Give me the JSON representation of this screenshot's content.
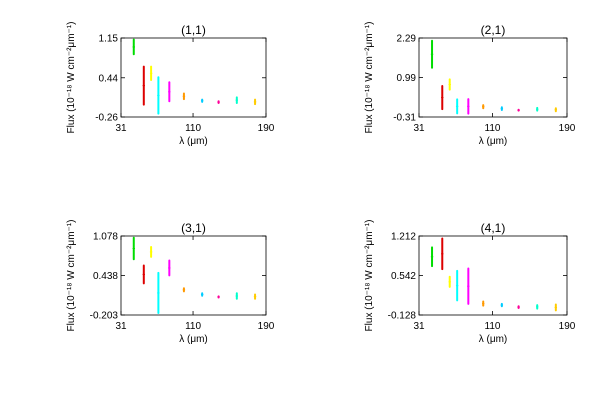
{
  "chart_data": [
    {
      "type": "scatter",
      "title": "(1,1)",
      "xlabel": "λ (μm)",
      "ylabel": "Flux (10⁻¹⁸ W cm⁻²μm⁻¹)",
      "xlim": [
        31,
        190
      ],
      "ylim": [
        -0.26,
        1.15
      ],
      "xticks": [
        "31",
        "110",
        "190"
      ],
      "yticks": [
        "-0.26",
        "0.44",
        "1.15"
      ],
      "series": [
        {
          "color": "#00dd00",
          "x": [
            45,
            45
          ],
          "y": [
            0.86,
            1.12
          ]
        },
        {
          "color": "#dd0000",
          "x": [
            56,
            56
          ],
          "y": [
            -0.04,
            0.64
          ]
        },
        {
          "color": "#ffff00",
          "x": [
            64,
            64
          ],
          "y": [
            0.4,
            0.64
          ]
        },
        {
          "color": "#00ffff",
          "x": [
            72,
            72
          ],
          "y": [
            -0.2,
            0.45
          ]
        },
        {
          "color": "#ff00ff",
          "x": [
            84,
            84
          ],
          "y": [
            0.02,
            0.36
          ]
        },
        {
          "color": "#ff9900",
          "x": [
            100,
            100
          ],
          "y": [
            0.06,
            0.16
          ]
        },
        {
          "color": "#00ccff",
          "x": [
            120,
            120
          ],
          "y": [
            0.01,
            0.05
          ]
        },
        {
          "color": "#ff0099",
          "x": [
            138,
            138
          ],
          "y": [
            -0.01,
            0.02
          ]
        },
        {
          "color": "#00ffcc",
          "x": [
            158,
            158
          ],
          "y": [
            -0.01,
            0.09
          ]
        },
        {
          "color": "#ffcc00",
          "x": [
            178,
            178
          ],
          "y": [
            -0.03,
            0.05
          ]
        }
      ]
    },
    {
      "type": "scatter",
      "title": "(2,1)",
      "xlabel": "λ (μm)",
      "ylabel": "Flux (10⁻¹⁸ W cm⁻²μm⁻¹)",
      "xlim": [
        31,
        190
      ],
      "ylim": [
        -0.31,
        2.29
      ],
      "xticks": [
        "31",
        "110",
        "190"
      ],
      "yticks": [
        "-0.31",
        "0.99",
        "2.29"
      ],
      "series": [
        {
          "color": "#00dd00",
          "x": [
            45,
            45
          ],
          "y": [
            1.31,
            2.2
          ]
        },
        {
          "color": "#dd0000",
          "x": [
            56,
            56
          ],
          "y": [
            -0.05,
            0.71
          ]
        },
        {
          "color": "#ffff00",
          "x": [
            64,
            64
          ],
          "y": [
            0.59,
            0.93
          ]
        },
        {
          "color": "#00ffff",
          "x": [
            72,
            72
          ],
          "y": [
            -0.19,
            0.27
          ]
        },
        {
          "color": "#ff00ff",
          "x": [
            84,
            84
          ],
          "y": [
            -0.2,
            0.28
          ]
        },
        {
          "color": "#ff9900",
          "x": [
            100,
            100
          ],
          "y": [
            -0.02,
            0.08
          ]
        },
        {
          "color": "#00ccff",
          "x": [
            120,
            120
          ],
          "y": [
            -0.08,
            0.01
          ]
        },
        {
          "color": "#ff0099",
          "x": [
            138,
            138
          ],
          "y": [
            -0.1,
            -0.07
          ]
        },
        {
          "color": "#00ffcc",
          "x": [
            158,
            158
          ],
          "y": [
            -0.1,
            -0.01
          ]
        },
        {
          "color": "#ffcc00",
          "x": [
            178,
            178
          ],
          "y": [
            -0.12,
            -0.02
          ]
        }
      ]
    },
    {
      "type": "scatter",
      "title": "(3,1)",
      "xlabel": "λ (μm)",
      "ylabel": "Flux (10⁻¹⁸ W cm⁻²μm⁻¹)",
      "xlim": [
        31,
        190
      ],
      "ylim": [
        -0.203,
        1.078
      ],
      "xticks": [
        "31",
        "110",
        "190"
      ],
      "yticks": [
        "-0.203",
        "0.438",
        "1.078"
      ],
      "series": [
        {
          "color": "#00dd00",
          "x": [
            45,
            45
          ],
          "y": [
            0.7,
            1.05
          ]
        },
        {
          "color": "#dd0000",
          "x": [
            56,
            56
          ],
          "y": [
            0.31,
            0.6
          ]
        },
        {
          "color": "#ffff00",
          "x": [
            64,
            64
          ],
          "y": [
            0.74,
            0.9
          ]
        },
        {
          "color": "#00ffff",
          "x": [
            72,
            72
          ],
          "y": [
            -0.17,
            0.48
          ]
        },
        {
          "color": "#ff00ff",
          "x": [
            84,
            84
          ],
          "y": [
            0.44,
            0.68
          ]
        },
        {
          "color": "#ff9900",
          "x": [
            100,
            100
          ],
          "y": [
            0.18,
            0.23
          ]
        },
        {
          "color": "#00ccff",
          "x": [
            120,
            120
          ],
          "y": [
            0.11,
            0.15
          ]
        },
        {
          "color": "#ff0099",
          "x": [
            138,
            138
          ],
          "y": [
            0.08,
            0.1
          ]
        },
        {
          "color": "#00ffcc",
          "x": [
            158,
            158
          ],
          "y": [
            0.06,
            0.15
          ]
        },
        {
          "color": "#ffcc00",
          "x": [
            178,
            178
          ],
          "y": [
            0.06,
            0.13
          ]
        }
      ]
    },
    {
      "type": "scatter",
      "title": "(4,1)",
      "xlabel": "λ (μm)",
      "ylabel": "Flux (10⁻¹⁸ W cm⁻²μm⁻¹)",
      "xlim": [
        31,
        190
      ],
      "ylim": [
        -0.128,
        1.212
      ],
      "xticks": [
        "31",
        "110",
        "190"
      ],
      "yticks": [
        "-0.128",
        "0.542",
        "1.212"
      ],
      "series": [
        {
          "color": "#00dd00",
          "x": [
            45,
            45
          ],
          "y": [
            0.7,
            1.02
          ]
        },
        {
          "color": "#dd0000",
          "x": [
            56,
            56
          ],
          "y": [
            0.65,
            1.17
          ]
        },
        {
          "color": "#ffff00",
          "x": [
            64,
            64
          ],
          "y": [
            0.35,
            0.52
          ]
        },
        {
          "color": "#00ffff",
          "x": [
            72,
            72
          ],
          "y": [
            0.12,
            0.62
          ]
        },
        {
          "color": "#ff00ff",
          "x": [
            84,
            84
          ],
          "y": [
            0.06,
            0.66
          ]
        },
        {
          "color": "#ff9900",
          "x": [
            100,
            100
          ],
          "y": [
            0.03,
            0.1
          ]
        },
        {
          "color": "#00ccff",
          "x": [
            120,
            120
          ],
          "y": [
            0.02,
            0.06
          ]
        },
        {
          "color": "#ff0099",
          "x": [
            138,
            138
          ],
          "y": [
            -0.01,
            0.02
          ]
        },
        {
          "color": "#00ffcc",
          "x": [
            158,
            158
          ],
          "y": [
            -0.02,
            0.04
          ]
        },
        {
          "color": "#ffcc00",
          "x": [
            178,
            178
          ],
          "y": [
            -0.05,
            0.05
          ]
        }
      ]
    }
  ]
}
